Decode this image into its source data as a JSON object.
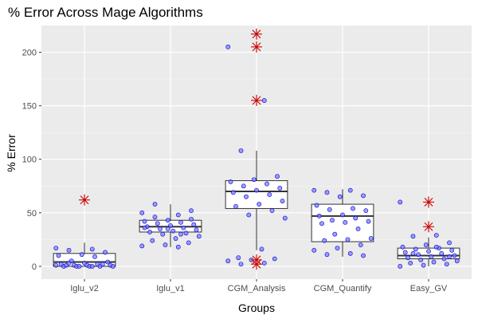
{
  "chart_data": {
    "type": "box",
    "title": "% Error Across Mage Algorithms",
    "xlabel": "Groups",
    "ylabel": "% Error",
    "ylim": [
      -12,
      225
    ],
    "y_ticks": [
      0,
      50,
      100,
      150,
      200
    ],
    "grid": true,
    "legend": "none",
    "categories": [
      "Iglu_v2",
      "Iglu_v1",
      "CGM_Analysis",
      "CGM_Quantify",
      "Easy_GV"
    ],
    "boxes": [
      {
        "group": "Iglu_v2",
        "q1": 0,
        "median": 4,
        "q3": 12,
        "whisker_low": 0,
        "whisker_high": 22
      },
      {
        "group": "Iglu_v1",
        "q1": 32,
        "median": 37,
        "q3": 43,
        "whisker_low": 18,
        "whisker_high": 58
      },
      {
        "group": "CGM_Analysis",
        "q1": 54,
        "median": 70,
        "q3": 80,
        "whisker_low": 15,
        "whisker_high": 108
      },
      {
        "group": "CGM_Quantify",
        "q1": 23,
        "median": 47,
        "q3": 58,
        "whisker_low": 9,
        "whisker_high": 72
      },
      {
        "group": "Easy_GV",
        "q1": 7,
        "median": 10,
        "q3": 17,
        "whisker_low": 0,
        "whisker_high": 27
      }
    ],
    "outliers": [
      {
        "group": "Iglu_v2",
        "y": 62
      },
      {
        "group": "CGM_Analysis",
        "y": 217
      },
      {
        "group": "CGM_Analysis",
        "y": 205
      },
      {
        "group": "CGM_Analysis",
        "y": 155
      },
      {
        "group": "CGM_Analysis",
        "y": 6
      },
      {
        "group": "CGM_Analysis",
        "y": 2
      },
      {
        "group": "Easy_GV",
        "y": 60
      },
      {
        "group": "Easy_GV",
        "y": 37
      }
    ],
    "points": [
      {
        "group": "Iglu_v2",
        "values": [
          17,
          16,
          15,
          13,
          11,
          10,
          9,
          5,
          4,
          3,
          2,
          2,
          1,
          1,
          1,
          0,
          0,
          0,
          0,
          0,
          1,
          2,
          0,
          1,
          0,
          3
        ]
      },
      {
        "group": "Iglu_v1",
        "values": [
          50,
          48,
          46,
          44,
          43,
          42,
          41,
          40,
          39,
          38,
          37,
          36,
          35,
          34,
          33,
          32,
          31,
          30,
          28,
          26,
          24,
          22,
          20,
          19,
          18,
          58,
          52,
          35,
          36,
          30
        ]
      },
      {
        "group": "CGM_Analysis",
        "values": [
          205,
          155,
          108,
          84,
          81,
          79,
          77,
          75,
          73,
          71,
          69,
          67,
          65,
          61,
          58,
          56,
          52,
          48,
          45,
          16,
          8,
          7,
          6,
          5,
          3,
          2
        ]
      },
      {
        "group": "CGM_Quantify",
        "values": [
          71,
          71,
          69,
          66,
          65,
          57,
          54,
          53,
          52,
          48,
          47,
          45,
          43,
          42,
          41,
          40,
          35,
          30,
          26,
          25,
          24,
          20,
          17,
          15,
          12,
          11,
          10
        ]
      },
      {
        "group": "Easy_GV",
        "values": [
          60,
          29,
          28,
          22,
          20,
          18,
          17,
          16,
          15,
          14,
          13,
          12,
          11,
          10,
          9,
          8,
          7,
          6,
          5,
          4,
          3,
          2,
          1,
          0,
          18,
          12,
          9
        ]
      }
    ],
    "colors": {
      "panel": "#ebebeb",
      "grid_major": "#ffffff",
      "grid_minor": "#f5f5f5",
      "box_fill": "#ffffff",
      "box_stroke": "#333333",
      "point_fill": "#7f7fff",
      "point_stroke": "#0000cc",
      "outlier": "#cc0000",
      "tick_text": "#4d4d4d"
    }
  }
}
